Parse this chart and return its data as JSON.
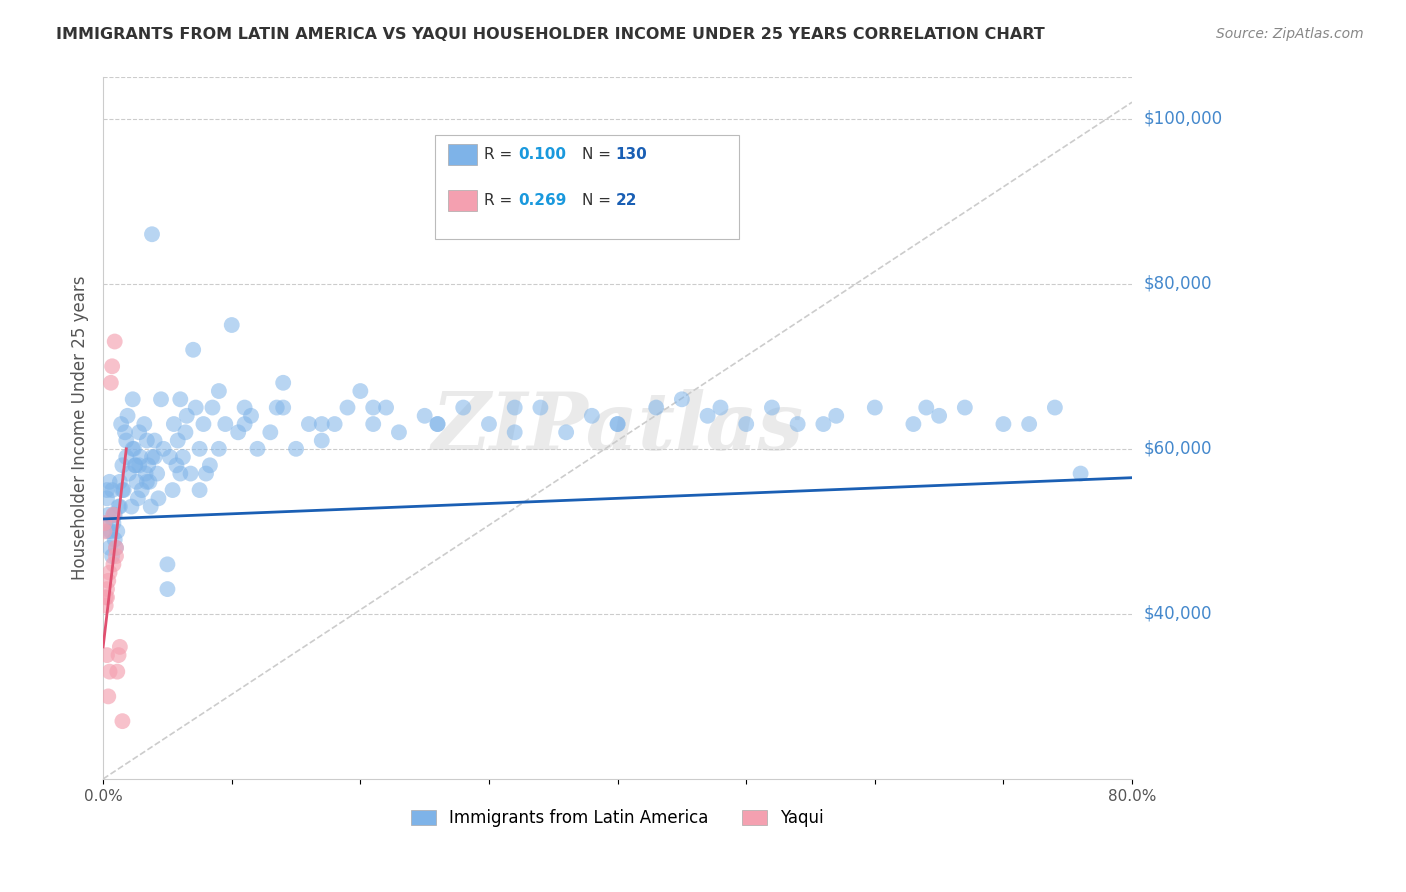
{
  "title": "IMMIGRANTS FROM LATIN AMERICA VS YAQUI HOUSEHOLDER INCOME UNDER 25 YEARS CORRELATION CHART",
  "source": "Source: ZipAtlas.com",
  "ylabel": "Householder Income Under 25 years",
  "right_ytick_labels": [
    "$100,000",
    "$80,000",
    "$60,000",
    "$40,000"
  ],
  "right_ytick_values": [
    100000,
    80000,
    60000,
    40000
  ],
  "legend_entries": [
    {
      "label": "Immigrants from Latin America",
      "color": "#7eb3e8",
      "R": "0.100",
      "N": "130"
    },
    {
      "label": "Yaqui",
      "color": "#f4a0b0",
      "R": "0.269",
      "N": "22"
    }
  ],
  "blue_scatter_x": [
    0.002,
    0.003,
    0.004,
    0.005,
    0.006,
    0.007,
    0.008,
    0.009,
    0.01,
    0.011,
    0.012,
    0.013,
    0.014,
    0.015,
    0.016,
    0.017,
    0.018,
    0.019,
    0.02,
    0.022,
    0.023,
    0.024,
    0.025,
    0.026,
    0.027,
    0.028,
    0.029,
    0.03,
    0.032,
    0.033,
    0.034,
    0.035,
    0.036,
    0.037,
    0.038,
    0.04,
    0.042,
    0.043,
    0.045,
    0.047,
    0.05,
    0.052,
    0.054,
    0.055,
    0.057,
    0.058,
    0.06,
    0.062,
    0.064,
    0.065,
    0.068,
    0.07,
    0.072,
    0.075,
    0.078,
    0.08,
    0.083,
    0.085,
    0.09,
    0.095,
    0.1,
    0.105,
    0.11,
    0.115,
    0.12,
    0.13,
    0.135,
    0.14,
    0.15,
    0.16,
    0.17,
    0.18,
    0.19,
    0.2,
    0.21,
    0.22,
    0.23,
    0.25,
    0.26,
    0.28,
    0.3,
    0.32,
    0.34,
    0.36,
    0.38,
    0.4,
    0.43,
    0.45,
    0.47,
    0.5,
    0.52,
    0.54,
    0.57,
    0.6,
    0.63,
    0.65,
    0.67,
    0.7,
    0.74,
    0.76,
    0.003,
    0.005,
    0.007,
    0.009,
    0.013,
    0.018,
    0.023,
    0.028,
    0.034,
    0.04,
    0.05,
    0.06,
    0.075,
    0.09,
    0.11,
    0.14,
    0.17,
    0.21,
    0.26,
    0.32,
    0.4,
    0.48,
    0.56,
    0.64,
    0.72,
    0.004,
    0.008,
    0.015,
    0.025,
    0.038
  ],
  "blue_scatter_y": [
    51000,
    55000,
    52000,
    48000,
    50000,
    47000,
    51000,
    49000,
    48000,
    50000,
    53000,
    56000,
    63000,
    58000,
    55000,
    62000,
    59000,
    64000,
    57000,
    53000,
    66000,
    60000,
    58000,
    56000,
    54000,
    62000,
    59000,
    55000,
    63000,
    57000,
    61000,
    58000,
    56000,
    53000,
    59000,
    61000,
    57000,
    54000,
    66000,
    60000,
    46000,
    59000,
    55000,
    63000,
    58000,
    61000,
    66000,
    59000,
    62000,
    64000,
    57000,
    72000,
    65000,
    60000,
    63000,
    57000,
    58000,
    65000,
    67000,
    63000,
    75000,
    62000,
    65000,
    64000,
    60000,
    62000,
    65000,
    68000,
    60000,
    63000,
    61000,
    63000,
    65000,
    67000,
    63000,
    65000,
    62000,
    64000,
    63000,
    65000,
    63000,
    62000,
    65000,
    62000,
    64000,
    63000,
    65000,
    66000,
    64000,
    63000,
    65000,
    63000,
    64000,
    65000,
    63000,
    64000,
    65000,
    63000,
    65000,
    57000,
    54000,
    56000,
    55000,
    52000,
    53000,
    61000,
    60000,
    58000,
    56000,
    59000,
    43000,
    57000,
    55000,
    60000,
    63000,
    65000,
    63000,
    65000,
    63000,
    65000,
    63000,
    65000,
    63000,
    65000,
    63000,
    50000,
    52000,
    55000,
    58000,
    86000
  ],
  "pink_scatter_x": [
    0.001,
    0.001,
    0.002,
    0.002,
    0.003,
    0.003,
    0.003,
    0.004,
    0.004,
    0.005,
    0.005,
    0.006,
    0.007,
    0.008,
    0.008,
    0.009,
    0.01,
    0.01,
    0.011,
    0.012,
    0.013,
    0.015
  ],
  "pink_scatter_y": [
    51000,
    50000,
    42000,
    41000,
    43000,
    42000,
    35000,
    44000,
    30000,
    45000,
    33000,
    68000,
    70000,
    46000,
    52000,
    73000,
    48000,
    47000,
    33000,
    35000,
    36000,
    27000
  ],
  "blue_line_x": [
    0.0,
    0.8
  ],
  "blue_line_y": [
    51500,
    56500
  ],
  "pink_line_x": [
    0.0,
    0.018
  ],
  "pink_line_y": [
    36000,
    60000
  ],
  "diag_line_x": [
    0.0,
    0.8
  ],
  "diag_line_y": [
    20000,
    102000
  ],
  "watermark": "ZIPatlas",
  "title_color": "#333333",
  "blue_dot_color": "#7eb3e8",
  "pink_dot_color": "#f4a0b0",
  "blue_line_color": "#1a5fb4",
  "pink_line_color": "#e05070",
  "right_label_color": "#4488cc",
  "xmin": 0.0,
  "xmax": 0.8,
  "ymin": 20000,
  "ymax": 105000
}
